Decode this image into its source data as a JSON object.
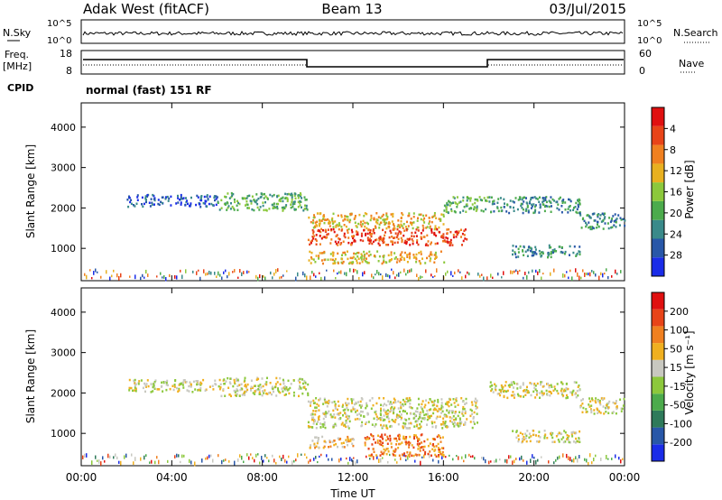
{
  "header": {
    "title": "Adak West (fitACF)",
    "beam": "Beam 13",
    "date": "03/Jul/2015"
  },
  "summary": {
    "nsky_label": "N.Sky",
    "nsky_ticks": [
      "10^5",
      "10^0"
    ],
    "nsearch_label": "N.Search",
    "nsearch_ticks": [
      "10^5",
      "10^0"
    ],
    "freq_label_1": "Freq.",
    "freq_label_2": "[MHz]",
    "freq_ticks": [
      "18",
      "8"
    ],
    "nave_label": "Nave",
    "nave_ticks": [
      "60",
      "0"
    ],
    "cpid_label": "CPID",
    "cpid_text": "normal (fast) 151 RF"
  },
  "chart_data": [
    {
      "type": "heatmap",
      "name": "power",
      "ylabel": "Slant Range [km]",
      "ylim": [
        200,
        4600
      ],
      "yticks": [
        "1000",
        "2000",
        "3000",
        "4000"
      ],
      "colorbar_label": "Power [dB]",
      "colorbar_ticks": [
        "4",
        "8",
        "12",
        "16",
        "20",
        "24",
        "28"
      ],
      "colors": [
        "#1a2ce8",
        "#2857a8",
        "#3a8a8a",
        "#4cab4c",
        "#8cc83c",
        "#e8b020",
        "#f08020",
        "#e84418",
        "#e01010"
      ],
      "bands": [
        {
          "x": [
            "02:00",
            "06:00"
          ],
          "range": [
            2050,
            2350
          ],
          "level": 1
        },
        {
          "x": [
            "06:00",
            "10:00"
          ],
          "range": [
            1950,
            2400
          ],
          "level": 3
        },
        {
          "x": [
            "10:00",
            "16:00"
          ],
          "range": [
            1500,
            1900
          ],
          "level": 5
        },
        {
          "x": [
            "10:00",
            "17:00"
          ],
          "range": [
            1100,
            1500
          ],
          "level": 7
        },
        {
          "x": [
            "10:00",
            "16:00"
          ],
          "range": [
            650,
            950
          ],
          "level": 5
        },
        {
          "x": [
            "16:00",
            "18:00"
          ],
          "range": [
            1900,
            2300
          ],
          "level": 3
        },
        {
          "x": [
            "18:00",
            "22:00"
          ],
          "range": [
            1900,
            2300
          ],
          "level": 2
        },
        {
          "x": [
            "19:00",
            "22:00"
          ],
          "range": [
            800,
            1100
          ],
          "level": 2
        },
        {
          "x": [
            "22:00",
            "24:00"
          ],
          "range": [
            1500,
            1900
          ],
          "level": 2
        }
      ]
    },
    {
      "type": "heatmap",
      "name": "velocity",
      "ylabel": "Slant Range [km]",
      "ylim": [
        200,
        4600
      ],
      "yticks": [
        "1000",
        "2000",
        "3000",
        "4000"
      ],
      "colorbar_label": "Velocity [m s⁻¹]",
      "colorbar_ticks": [
        "200",
        "100",
        "50",
        "15",
        "-15",
        "-50",
        "-100",
        "-200"
      ],
      "colors": [
        "#1a2ce8",
        "#2857a8",
        "#2e7a5a",
        "#4cab4c",
        "#8cc83c",
        "#c8c8c0",
        "#f0b020",
        "#f08020",
        "#e84418",
        "#e01010"
      ],
      "bands": [
        {
          "x": [
            "02:00",
            "06:00"
          ],
          "range": [
            2050,
            2350
          ],
          "level": 5
        },
        {
          "x": [
            "06:00",
            "10:00"
          ],
          "range": [
            1950,
            2400
          ],
          "level": 5
        },
        {
          "x": [
            "10:00",
            "17:30"
          ],
          "range": [
            1150,
            1900
          ],
          "level": 5
        },
        {
          "x": [
            "10:00",
            "12:00"
          ],
          "range": [
            650,
            950
          ],
          "level": 6
        },
        {
          "x": [
            "12:30",
            "16:00"
          ],
          "range": [
            450,
            1000
          ],
          "level": 7
        },
        {
          "x": [
            "18:00",
            "22:00"
          ],
          "range": [
            1900,
            2300
          ],
          "level": 5
        },
        {
          "x": [
            "19:00",
            "22:00"
          ],
          "range": [
            800,
            1100
          ],
          "level": 5
        },
        {
          "x": [
            "22:00",
            "24:00"
          ],
          "range": [
            1500,
            1900
          ],
          "level": 5
        }
      ]
    }
  ],
  "x_axis": {
    "ticks": [
      "00:00",
      "04:00",
      "08:00",
      "12:00",
      "16:00",
      "20:00",
      "00:00"
    ],
    "label": "Time UT"
  }
}
